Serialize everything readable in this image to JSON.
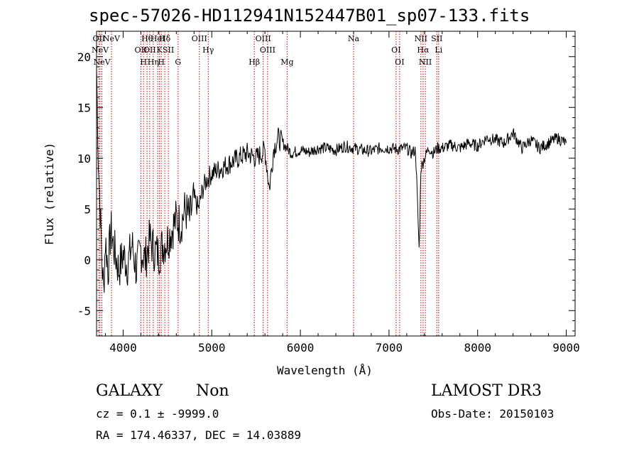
{
  "chart_data": {
    "type": "line",
    "title": "spec-57026-HD112941N152447B01_sp07-133.fits",
    "xlabel": "Wavelength (Å)",
    "ylabel": "Flux (relative)",
    "xlim": [
      3700,
      9100
    ],
    "ylim": [
      -7.5,
      22.5
    ],
    "xticks": [
      4000,
      5000,
      6000,
      7000,
      8000,
      9000
    ],
    "yticks": [
      -5,
      0,
      5,
      10,
      15,
      20
    ],
    "series": [
      {
        "name": "spectrum",
        "x": [
          3700,
          3720,
          3740,
          3760,
          3780,
          3800,
          3830,
          3860,
          3900,
          3950,
          4000,
          4050,
          4100,
          4150,
          4200,
          4250,
          4300,
          4350,
          4400,
          4450,
          4500,
          4550,
          4600,
          4650,
          4700,
          4750,
          4800,
          4850,
          4900,
          4950,
          5000,
          5100,
          5200,
          5300,
          5400,
          5500,
          5600,
          5650,
          5700,
          5750,
          5800,
          5850,
          5900,
          6000,
          6100,
          6200,
          6300,
          6400,
          6500,
          6600,
          6700,
          6800,
          6900,
          7000,
          7100,
          7200,
          7250,
          7300,
          7340,
          7360,
          7400,
          7450,
          7500,
          7550,
          7600,
          7700,
          7800,
          7900,
          8000,
          8100,
          8200,
          8300,
          8400,
          8500,
          8600,
          8700,
          8800,
          8900,
          9000
        ],
        "y": [
          19,
          10,
          5,
          0,
          -3,
          2,
          -1,
          3,
          1,
          -1,
          0.5,
          -0.5,
          1.5,
          -1,
          1,
          0,
          2,
          1,
          0.5,
          1.5,
          2,
          3,
          4,
          3.5,
          5,
          4,
          6,
          5,
          7,
          8,
          8.5,
          9,
          9.5,
          10,
          10.5,
          10,
          10.8,
          7,
          11,
          12,
          11.5,
          11,
          10.5,
          10.8,
          10.6,
          11,
          11,
          10.8,
          11.2,
          11,
          10.8,
          10.7,
          11,
          11,
          10.9,
          11,
          10.5,
          10.8,
          1,
          9,
          10,
          11,
          10.5,
          11,
          11,
          11.3,
          11,
          11.5,
          11.2,
          12,
          11.8,
          11.5,
          12.5,
          11,
          11.8,
          11,
          11.5,
          12,
          11.5
        ]
      }
    ],
    "line_markers": [
      {
        "wavelength": 3727,
        "label": "OII"
      },
      {
        "wavelength": 3740,
        "label": "NeV"
      },
      {
        "wavelength": 3760,
        "label": "NeV"
      },
      {
        "wavelength": 3868,
        "label": "NeV"
      },
      {
        "wavelength": 4200,
        "label": "OII"
      },
      {
        "wavelength": 4230,
        "label": "H"
      },
      {
        "wavelength": 4270,
        "label": "Hθ"
      },
      {
        "wavelength": 4300,
        "label": "OII"
      },
      {
        "wavelength": 4340,
        "label": "Hη"
      },
      {
        "wavelength": 4390,
        "label": "HeI"
      },
      {
        "wavelength": 4410,
        "label": "K"
      },
      {
        "wavelength": 4430,
        "label": "H"
      },
      {
        "wavelength": 4470,
        "label": "Hδ"
      },
      {
        "wavelength": 4510,
        "label": "SII"
      },
      {
        "wavelength": 4620,
        "label": "G"
      },
      {
        "wavelength": 4860,
        "label": "OIII"
      },
      {
        "wavelength": 4960,
        "label": "Hγ"
      },
      {
        "wavelength": 5480,
        "label": "Hβ"
      },
      {
        "wavelength": 5580,
        "label": "OIII"
      },
      {
        "wavelength": 5630,
        "label": "OIII"
      },
      {
        "wavelength": 5850,
        "label": "Mg"
      },
      {
        "wavelength": 6600,
        "label": "Na"
      },
      {
        "wavelength": 7080,
        "label": "OI"
      },
      {
        "wavelength": 7120,
        "label": "OI"
      },
      {
        "wavelength": 7360,
        "label": "NII"
      },
      {
        "wavelength": 7385,
        "label": "Hα"
      },
      {
        "wavelength": 7410,
        "label": "NII"
      },
      {
        "wavelength": 7540,
        "label": "SII"
      },
      {
        "wavelength": 7560,
        "label": "Li"
      }
    ]
  },
  "info": {
    "object_class": "GALAXY",
    "subclass": "Non",
    "survey": "LAMOST DR3",
    "cz_line": "cz = 0.1 ± -9999.0",
    "obs_date": "Obs-Date: 20150103",
    "coords": "RA = 174.46337, DEC =  14.03889"
  },
  "colors": {
    "spectrum": "#000000",
    "marker": "#cc0000",
    "axis": "#000000"
  }
}
